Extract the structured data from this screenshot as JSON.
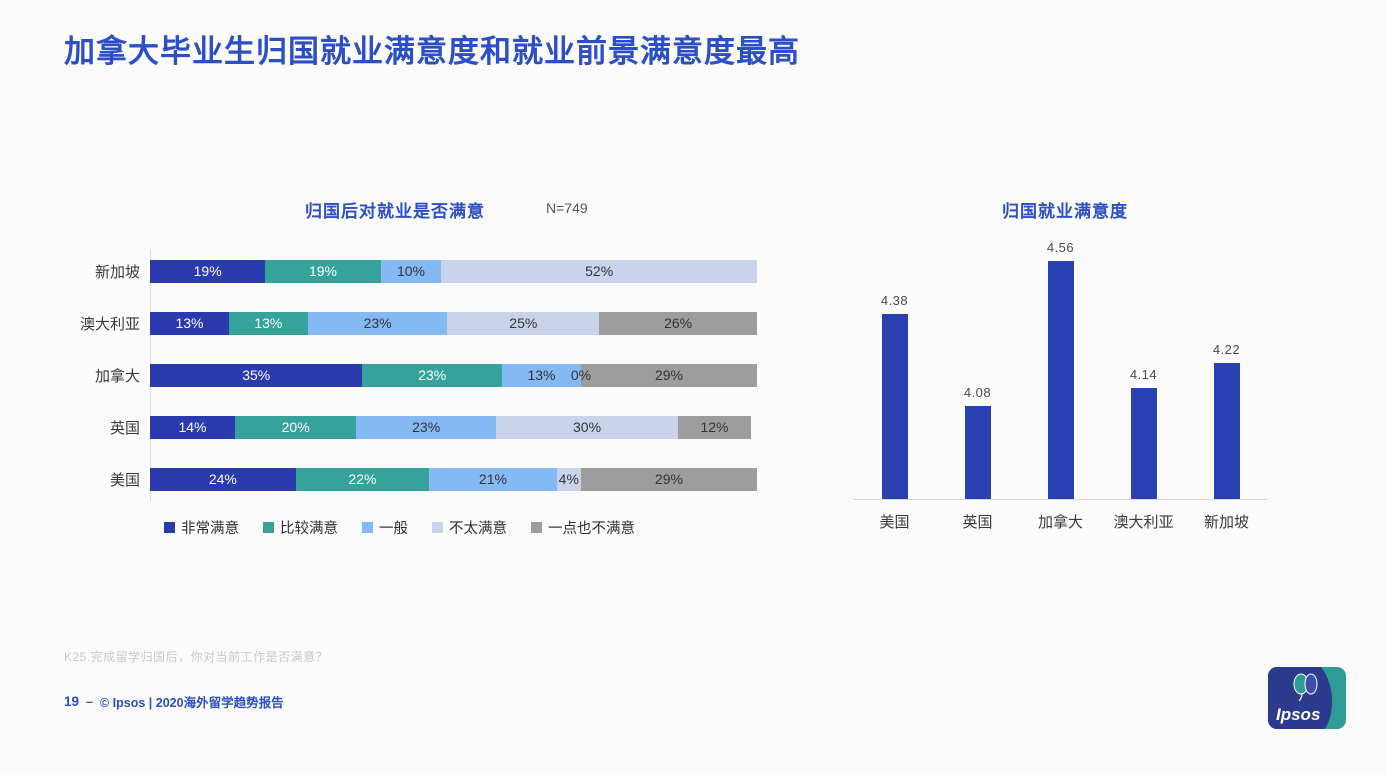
{
  "title": "加拿大毕业生归国就业满意度和就业前景满意度最高",
  "colors": {
    "title_blue": "#2C4EC8",
    "background": "#FBFBFC",
    "axis_line": "#DCDCDC"
  },
  "chart_data": [
    {
      "type": "bar",
      "orientation": "horizontal-stacked",
      "title": "归国后对就业是否满意",
      "n_label": "N=749",
      "unit": "%",
      "categories": [
        "新加坡",
        "澳大利亚",
        "加拿大",
        "英国",
        "美国"
      ],
      "series": [
        {
          "name": "非常满意",
          "color": "#2B3BAD",
          "label_color": "#FFFFFF",
          "values": [
            19,
            13,
            35,
            14,
            24
          ]
        },
        {
          "name": "比较满意",
          "color": "#35A29B",
          "label_color": "#FFFFFF",
          "values": [
            19,
            13,
            23,
            20,
            22
          ]
        },
        {
          "name": "一般",
          "color": "#85B9F4",
          "label_color": "#333333",
          "values": [
            10,
            23,
            13,
            23,
            21
          ]
        },
        {
          "name": "不太满意",
          "color": "#C9D3EC",
          "label_color": "#333333",
          "values": [
            52,
            25,
            0,
            30,
            4
          ]
        },
        {
          "name": "一点也不满意",
          "color": "#9D9D9D",
          "label_color": "#333333",
          "values": [
            0,
            26,
            29,
            12,
            29
          ]
        }
      ],
      "segment_labels": [
        [
          "19%",
          "19%",
          "10%",
          "52%",
          ""
        ],
        [
          "13%",
          "13%",
          "23%",
          "25%",
          "26%"
        ],
        [
          "35%",
          "23%",
          "13%",
          "0%",
          "29%"
        ],
        [
          "14%",
          "20%",
          "23%",
          "30%",
          "12%"
        ],
        [
          "24%",
          "22%",
          "21%",
          "4%",
          "29%"
        ]
      ],
      "legend_position": "bottom",
      "grid": false
    },
    {
      "type": "bar",
      "orientation": "vertical",
      "title": "归国就业满意度",
      "categories": [
        "美国",
        "英国",
        "加拿大",
        "澳大利亚",
        "新加坡"
      ],
      "values": [
        4.38,
        4.08,
        4.56,
        4.14,
        4.22
      ],
      "value_labels": [
        "4.38",
        "4.08",
        "4.56",
        "4.14",
        "4.22"
      ],
      "bar_color": "#2940B2",
      "ylim": [
        3.78,
        4.62
      ],
      "grid": false
    }
  ],
  "footnote": "K25.完成留学归国后，你对当前工作是否满意？",
  "footer": {
    "page": "19",
    "separator": "–",
    "copyright": "© Ipsos | 2020海外留学趋势报告"
  },
  "logo": {
    "text": "Ipsos",
    "navy": "#2B3A8C",
    "teal": "#2E9C94"
  }
}
